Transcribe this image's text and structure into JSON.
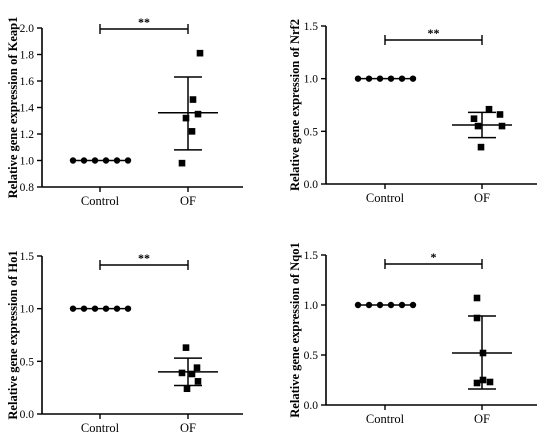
{
  "chart_data": [
    {
      "type": "scatter",
      "ylabel": "Relative gene expression of Keap1",
      "categories": [
        "Control",
        "OF"
      ],
      "ylim": [
        0.8,
        2.0
      ],
      "yticks": [
        "0.8",
        "1.0",
        "1.2",
        "1.4",
        "1.6",
        "1.8",
        "2.0"
      ],
      "significance": "**",
      "groups": [
        {
          "marker": "circle",
          "values": [
            1.0,
            1.0,
            1.0,
            1.0,
            1.0,
            1.0
          ],
          "mean": 1.0,
          "sd_low": 1.0,
          "sd_high": 1.0
        },
        {
          "marker": "square",
          "values": [
            1.81,
            1.46,
            1.32,
            1.35,
            1.22,
            0.98
          ],
          "mean": 1.36,
          "sd_low": 1.08,
          "sd_high": 1.63
        }
      ]
    },
    {
      "type": "scatter",
      "ylabel": "Relative gene expression of Nrf2",
      "categories": [
        "Control",
        "OF"
      ],
      "ylim": [
        0.0,
        1.5
      ],
      "yticks": [
        "0.0",
        "0.5",
        "1.0",
        "1.5"
      ],
      "significance": "**",
      "groups": [
        {
          "marker": "circle",
          "values": [
            1.0,
            1.0,
            1.0,
            1.0,
            1.0,
            1.0
          ],
          "mean": 1.0,
          "sd_low": 1.0,
          "sd_high": 1.0
        },
        {
          "marker": "square",
          "values": [
            0.62,
            0.71,
            0.66,
            0.55,
            0.55,
            0.35
          ],
          "mean": 0.56,
          "sd_low": 0.44,
          "sd_high": 0.68
        }
      ]
    },
    {
      "type": "scatter",
      "ylabel": "Relative gene expression of Ho1",
      "categories": [
        "Control",
        "OF"
      ],
      "ylim": [
        0.0,
        1.5
      ],
      "yticks": [
        "0.0",
        "0.5",
        "1.0",
        "1.5"
      ],
      "significance": "**",
      "groups": [
        {
          "marker": "circle",
          "values": [
            1.0,
            1.0,
            1.0,
            1.0,
            1.0,
            1.0
          ],
          "mean": 1.0,
          "sd_low": 1.0,
          "sd_high": 1.0
        },
        {
          "marker": "square",
          "values": [
            0.63,
            0.44,
            0.39,
            0.38,
            0.31,
            0.24
          ],
          "mean": 0.4,
          "sd_low": 0.27,
          "sd_high": 0.53
        }
      ]
    },
    {
      "type": "scatter",
      "ylabel": "Relative gene expression of Nqo1",
      "categories": [
        "Control",
        "OF"
      ],
      "ylim": [
        0.0,
        1.5
      ],
      "yticks": [
        "0.0",
        "0.5",
        "1.0",
        "1.5"
      ],
      "significance": "*",
      "groups": [
        {
          "marker": "circle",
          "values": [
            1.0,
            1.0,
            1.0,
            1.0,
            1.0,
            1.0
          ],
          "mean": 1.0,
          "sd_low": 1.0,
          "sd_high": 1.0
        },
        {
          "marker": "square",
          "values": [
            1.07,
            0.87,
            0.52,
            0.25,
            0.23,
            0.22
          ],
          "mean": 0.52,
          "sd_low": 0.16,
          "sd_high": 0.89
        }
      ]
    }
  ]
}
